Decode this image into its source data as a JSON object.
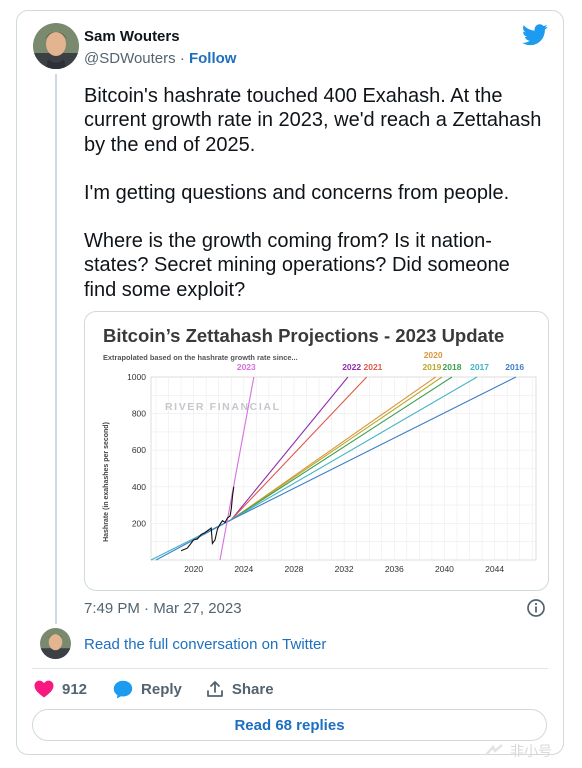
{
  "author": {
    "name": "Sam Wouters",
    "handle": "@SDWouters",
    "separator": "·",
    "follow_label": "Follow"
  },
  "tweet": {
    "paragraphs": [
      "Bitcoin's hashrate touched 400 Exahash. At the current growth rate in 2023, we'd reach a Zettahash by the end of 2025.",
      "I'm getting questions and concerns from people.",
      "Where is the growth coming from? Is it nation-states? Secret mining operations? Did someone find some exploit?"
    ],
    "timestamp": "7:49 PM · Mar 27, 2023"
  },
  "conversation": {
    "link_label": "Read the full conversation on Twitter"
  },
  "actions": {
    "likes": "912",
    "reply_label": "Reply",
    "share_label": "Share",
    "read_replies_label": "Read 68 replies"
  },
  "watermark": {
    "text": "非小号"
  },
  "colors": {
    "link": "#1d6fbf",
    "like": "#f91880",
    "twitter_blue": "#1d9bf0"
  },
  "icons": [
    "twitter-bird-icon",
    "info-icon",
    "heart-icon",
    "reply-bubble-icon",
    "share-icon"
  ],
  "chart_data": {
    "type": "line",
    "title": "Bitcoin’s Zettahash Projections - 2023 Update",
    "subtitle": "Extrapolated based on the hashrate growth rate since...",
    "watermark": "RIVER FINANCIAL",
    "xlabel": "",
    "ylabel": "Hashrate (in exahashes per second)",
    "xlim": [
      2016.6,
      2047.3
    ],
    "ylim": [
      0,
      1000
    ],
    "x_ticks": [
      "2020",
      "2024",
      "2028",
      "2032",
      "2036",
      "2040",
      "2044"
    ],
    "y_ticks": [
      "200",
      "400",
      "600",
      "800",
      "1000"
    ],
    "grid": true,
    "legend": "top (labels at line ends)",
    "historical": {
      "x": [
        2019.0,
        2019.5,
        2020.0,
        2020.3,
        2020.6,
        2020.9,
        2021.2,
        2021.4,
        2021.5,
        2021.7,
        2021.9,
        2022.1,
        2022.3,
        2022.5,
        2022.7,
        2022.9,
        2023.0,
        2023.1,
        2023.2
      ],
      "y": [
        50,
        65,
        110,
        115,
        140,
        150,
        165,
        175,
        90,
        110,
        170,
        195,
        215,
        205,
        230,
        240,
        280,
        350,
        400
      ]
    },
    "series": [
      {
        "name": "2023",
        "color": "#d870e0",
        "x": [
          2022.1,
          2024.8
        ],
        "y": [
          0,
          1000
        ]
      },
      {
        "name": "2022",
        "color": "#8e2bb0",
        "x": [
          2023.0,
          2032.3
        ],
        "y": [
          220,
          1000
        ]
      },
      {
        "name": "2021",
        "color": "#e05a4e",
        "x": [
          2023.0,
          2033.8
        ],
        "y": [
          220,
          1000
        ]
      },
      {
        "name": "2020",
        "color": "#d9963a",
        "x": [
          2023.0,
          2039.3
        ],
        "y": [
          220,
          1000
        ]
      },
      {
        "name": "2019",
        "color": "#b9a82a",
        "x": [
          2023.0,
          2039.8
        ],
        "y": [
          220,
          1000
        ]
      },
      {
        "name": "2018",
        "color": "#3a9e4e",
        "x": [
          2023.0,
          2040.6
        ],
        "y": [
          220,
          1000
        ]
      },
      {
        "name": "2017",
        "color": "#41b3c6",
        "x": [
          2023.0,
          2042.6
        ],
        "y": [
          220,
          1000
        ]
      },
      {
        "name": "2016",
        "color": "#3f7fc8",
        "x": [
          2023.0,
          2045.7
        ],
        "y": [
          220,
          1000
        ]
      }
    ],
    "pre_2023_fits": [
      {
        "color": "#41b3c6",
        "x": [
          2016.6,
          2023.0
        ],
        "y": [
          0,
          220
        ]
      },
      {
        "color": "#3f7fc8",
        "x": [
          2017.0,
          2023.0
        ],
        "y": [
          0,
          220
        ]
      }
    ]
  }
}
